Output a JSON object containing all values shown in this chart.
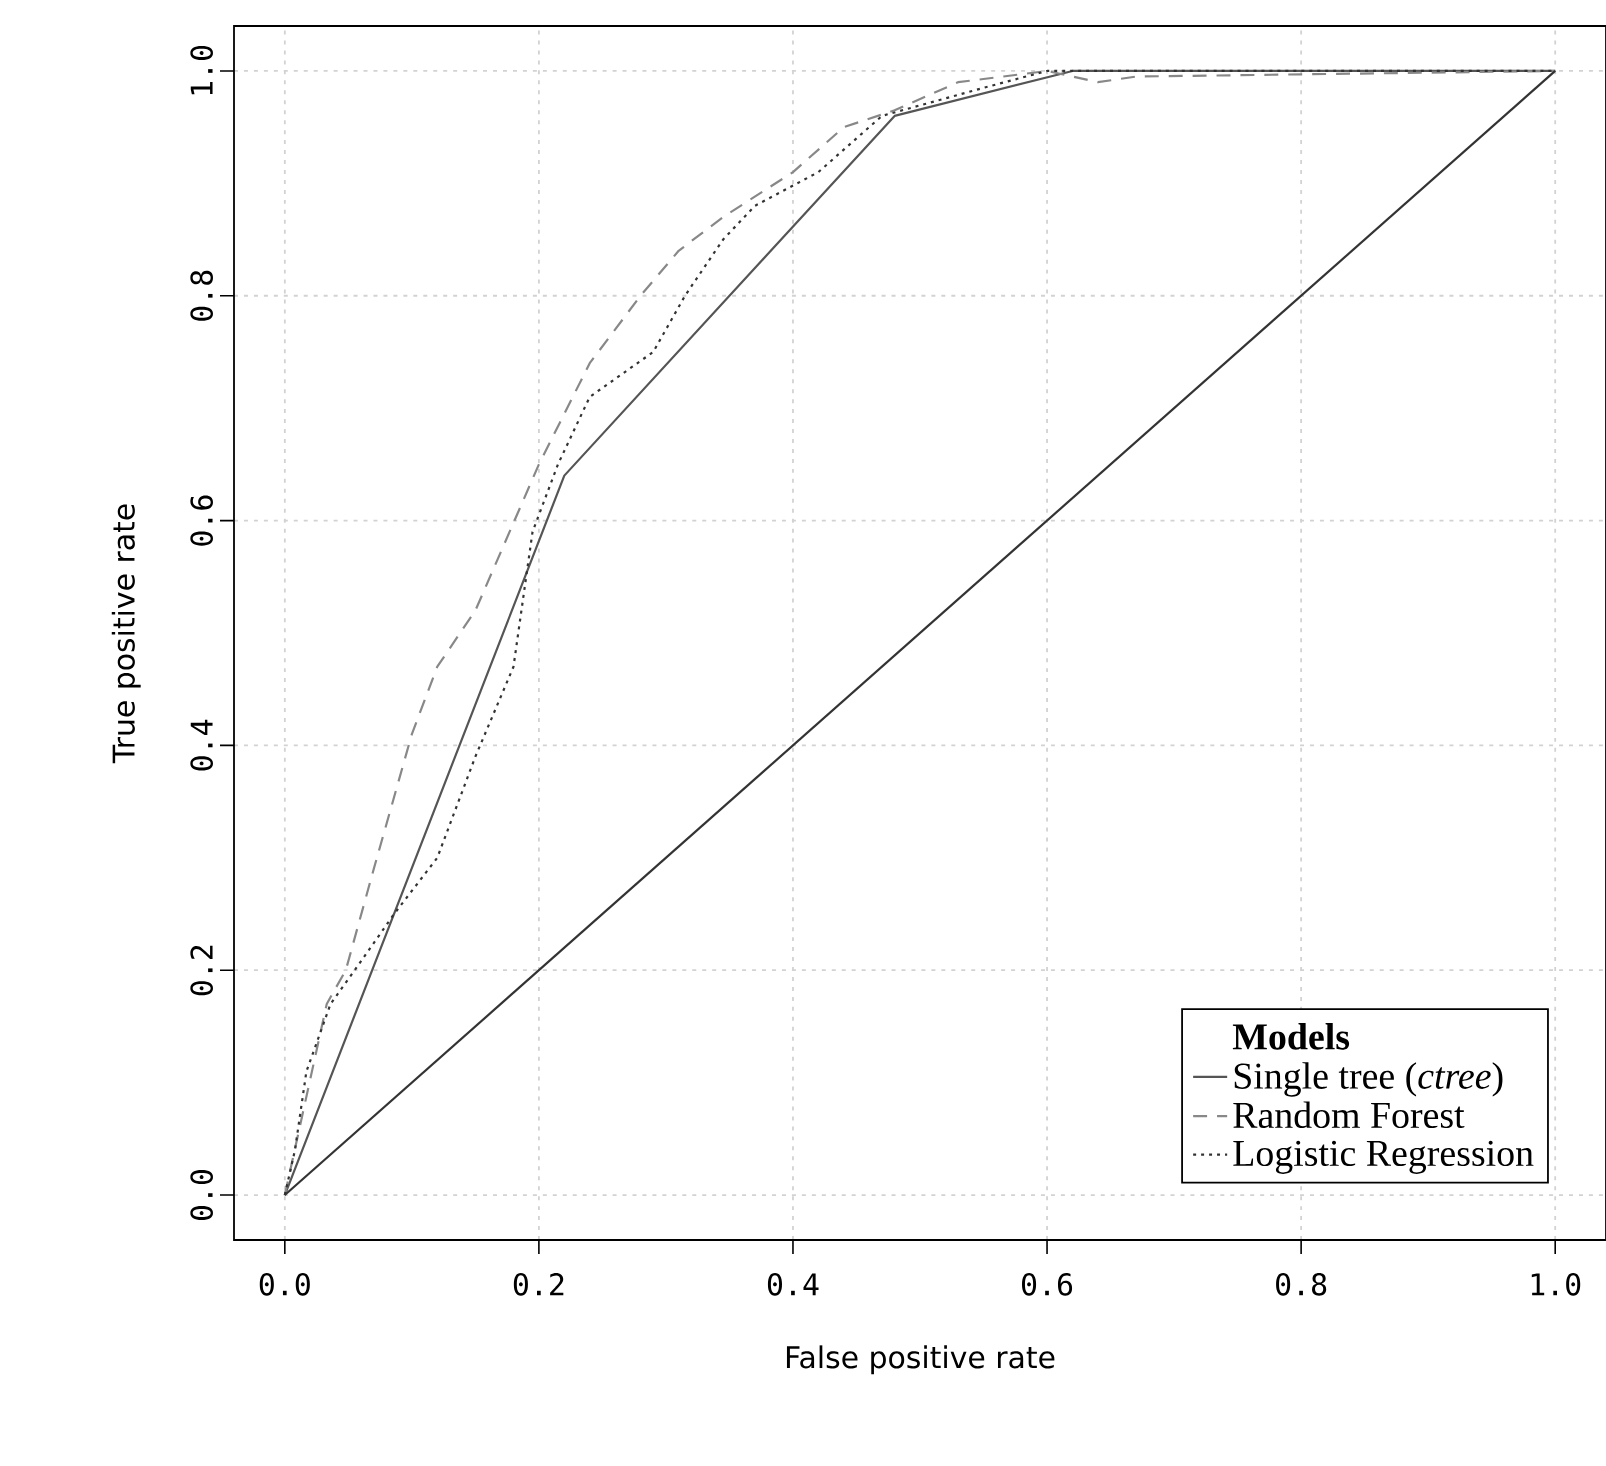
{
  "chart_data": {
    "type": "line",
    "xlabel": "False positive rate",
    "ylabel": "True positive rate",
    "legend_title": "Models",
    "xlim": [
      -0.04,
      1.04
    ],
    "ylim": [
      -0.04,
      1.04
    ],
    "xticks": [
      {
        "value": 0,
        "label": "0.0"
      },
      0.2,
      0.4,
      0.6,
      0.8,
      {
        "value": 1,
        "label": "1.0"
      }
    ],
    "yticks": [
      {
        "value": 0,
        "label": "0.0"
      },
      0.2,
      0.4,
      0.6,
      0.8,
      {
        "value": 1,
        "label": "1.0"
      }
    ],
    "grid": true,
    "legend": "bottom right",
    "marker": "none",
    "series": [
      {
        "name": "Single tree (*ctree*)",
        "color": "#555555",
        "line_style": "solid",
        "x": [
          0,
          0.22,
          0.48,
          0.62,
          1
        ],
        "values": [
          0,
          0.64,
          0.96,
          1.0,
          1
        ]
      },
      {
        "name": "Random Forest",
        "color": "#888888",
        "line_style": "dashed",
        "x": [
          0,
          0.033,
          0.048,
          0.07,
          0.1,
          0.12,
          0.15,
          0.2,
          0.24,
          0.28,
          0.31,
          0.345,
          0.4,
          0.44,
          0.48,
          0.53,
          0.6,
          0.64,
          0.67,
          1
        ],
        "values": [
          0,
          0.17,
          0.2,
          0.29,
          0.41,
          0.47,
          0.52,
          0.65,
          0.74,
          0.8,
          0.84,
          0.87,
          0.91,
          0.95,
          0.965,
          0.99,
          1.0,
          0.99,
          0.995,
          1
        ]
      },
      {
        "name": "Logistic Regression",
        "color": "#333333",
        "line_style": "dotted",
        "x": [
          0,
          0.008,
          0.017,
          0.036,
          0.055,
          0.086,
          0.12,
          0.15,
          0.18,
          0.195,
          0.215,
          0.24,
          0.29,
          0.315,
          0.345,
          0.37,
          0.42,
          0.45,
          0.47,
          0.55,
          0.6,
          1
        ],
        "values": [
          0,
          0.04,
          0.11,
          0.17,
          0.2,
          0.25,
          0.3,
          0.39,
          0.47,
          0.59,
          0.65,
          0.71,
          0.75,
          0.8,
          0.85,
          0.88,
          0.91,
          0.94,
          0.96,
          0.985,
          1.0,
          1
        ]
      },
      {
        "color": "#333333",
        "line_style": "solid",
        "x": [
          0,
          1
        ],
        "values": [
          0,
          1
        ]
      }
    ]
  }
}
